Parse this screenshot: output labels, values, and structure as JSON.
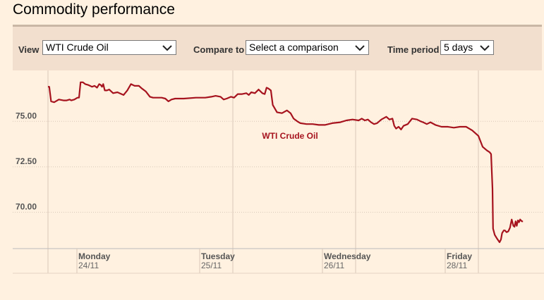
{
  "title": "Commodity performance",
  "controls": {
    "view_label": "View",
    "view_value": "WTI Crude Oil",
    "compare_label": "Compare to",
    "compare_value": "Select a comparison",
    "period_label": "Time period",
    "period_value": "5 days"
  },
  "colors": {
    "series": "#a6131e",
    "background": "#fff1e0",
    "toolbar": "#f2dfce"
  },
  "chart_data": {
    "type": "line",
    "ylim": [
      68.0,
      77.8
    ],
    "y_ticks": [
      75.0,
      72.5,
      70.0
    ],
    "y_tick_labels": [
      "75.00",
      "72.50",
      "70.00"
    ],
    "x_sessions": [
      {
        "day": "Monday",
        "date": "24/11"
      },
      {
        "day": "Tuesday",
        "date": "25/11"
      },
      {
        "day": "Wednesday",
        "date": "26/11"
      },
      {
        "day": "Friday",
        "date": "28/11"
      }
    ],
    "grid": "dotted",
    "series": [
      {
        "name": "WTI Crude Oil",
        "points": [
          [
            0.0,
            76.9
          ],
          [
            0.04,
            76.9
          ],
          [
            0.1,
            76.1
          ],
          [
            0.2,
            76.05
          ],
          [
            0.35,
            76.2
          ],
          [
            0.5,
            76.15
          ],
          [
            0.6,
            76.15
          ],
          [
            0.7,
            76.2
          ],
          [
            0.75,
            76.15
          ],
          [
            0.85,
            76.2
          ],
          [
            0.95,
            76.3
          ],
          [
            1.0,
            76.3
          ],
          [
            1.05,
            77.15
          ],
          [
            1.12,
            77.15
          ],
          [
            1.2,
            77.05
          ],
          [
            1.3,
            77.0
          ],
          [
            1.42,
            76.9
          ],
          [
            1.5,
            76.95
          ],
          [
            1.58,
            76.85
          ],
          [
            1.65,
            77.05
          ],
          [
            1.7,
            77.0
          ],
          [
            1.74,
            76.9
          ],
          [
            1.78,
            77.05
          ],
          [
            1.83,
            76.7
          ],
          [
            1.9,
            76.7
          ],
          [
            1.97,
            76.75
          ],
          [
            2.05,
            76.55
          ],
          [
            2.12,
            76.6
          ],
          [
            2.22,
            76.45
          ],
          [
            2.28,
            76.7
          ],
          [
            2.34,
            77.05
          ],
          [
            2.4,
            76.95
          ],
          [
            2.47,
            76.95
          ],
          [
            2.52,
            76.8
          ],
          [
            2.58,
            76.65
          ],
          [
            2.65,
            76.35
          ],
          [
            2.7,
            76.3
          ],
          [
            2.78,
            76.3
          ],
          [
            2.84,
            76.3
          ],
          [
            2.9,
            76.25
          ],
          [
            2.95,
            76.1
          ],
          [
            3.0,
            76.2
          ],
          [
            3.06,
            76.25
          ],
          [
            3.2,
            76.25
          ],
          [
            3.4,
            76.3
          ],
          [
            3.55,
            76.3
          ],
          [
            3.65,
            76.35
          ],
          [
            3.72,
            76.4
          ],
          [
            3.8,
            76.35
          ],
          [
            3.85,
            76.2
          ],
          [
            3.9,
            76.25
          ],
          [
            3.97,
            76.35
          ],
          [
            4.02,
            76.3
          ],
          [
            4.08,
            76.5
          ],
          [
            4.15,
            76.5
          ],
          [
            4.22,
            76.55
          ],
          [
            4.26,
            76.45
          ],
          [
            4.3,
            76.6
          ],
          [
            4.36,
            76.55
          ],
          [
            4.42,
            76.75
          ],
          [
            4.48,
            76.55
          ],
          [
            4.52,
            76.5
          ],
          [
            4.55,
            76.85
          ],
          [
            4.58,
            76.8
          ],
          [
            4.62,
            76.7
          ],
          [
            4.65,
            75.9
          ],
          [
            4.72,
            75.5
          ],
          [
            4.8,
            75.45
          ],
          [
            4.88,
            75.6
          ],
          [
            4.94,
            75.45
          ],
          [
            4.99,
            75.15
          ],
          [
            5.05,
            75.0
          ],
          [
            5.1,
            74.9
          ],
          [
            5.2,
            74.85
          ],
          [
            5.3,
            74.85
          ],
          [
            5.4,
            74.8
          ],
          [
            5.5,
            74.8
          ],
          [
            5.62,
            74.9
          ],
          [
            5.75,
            74.95
          ],
          [
            5.85,
            75.05
          ],
          [
            5.95,
            75.1
          ],
          [
            6.05,
            75.05
          ],
          [
            6.1,
            75.15
          ],
          [
            6.15,
            75.05
          ],
          [
            6.2,
            75.1
          ],
          [
            6.25,
            74.95
          ],
          [
            6.3,
            74.85
          ],
          [
            6.35,
            74.9
          ],
          [
            6.42,
            75.1
          ],
          [
            6.5,
            75.25
          ],
          [
            6.55,
            75.1
          ],
          [
            6.6,
            75.15
          ],
          [
            6.63,
            74.75
          ],
          [
            6.66,
            74.6
          ],
          [
            6.7,
            74.7
          ],
          [
            6.74,
            74.55
          ],
          [
            6.78,
            74.75
          ],
          [
            6.85,
            74.85
          ],
          [
            6.92,
            75.15
          ],
          [
            7.0,
            75.1
          ],
          [
            7.06,
            75.0
          ],
          [
            7.1,
            74.95
          ],
          [
            7.16,
            74.85
          ],
          [
            7.22,
            74.95
          ],
          [
            7.3,
            74.8
          ],
          [
            7.4,
            74.7
          ],
          [
            7.5,
            74.7
          ],
          [
            7.6,
            74.65
          ],
          [
            7.7,
            74.7
          ],
          [
            7.8,
            74.7
          ],
          [
            7.85,
            74.6
          ],
          [
            7.9,
            74.5
          ],
          [
            8.0,
            74.2
          ],
          [
            8.15,
            73.6
          ],
          [
            8.3,
            73.4
          ],
          [
            8.4,
            73.3
          ],
          [
            8.45,
            73.2
          ],
          [
            8.5,
            71.3
          ],
          [
            8.52,
            69.1
          ],
          [
            8.58,
            68.75
          ],
          [
            8.66,
            68.55
          ],
          [
            8.75,
            68.35
          ],
          [
            8.8,
            68.5
          ],
          [
            8.84,
            68.85
          ],
          [
            8.9,
            69.0
          ],
          [
            8.94,
            69.0
          ],
          [
            9.0,
            68.9
          ],
          [
            9.06,
            68.95
          ],
          [
            9.12,
            69.15
          ],
          [
            9.18,
            69.6
          ],
          [
            9.24,
            69.25
          ],
          [
            9.28,
            69.2
          ],
          [
            9.32,
            69.5
          ],
          [
            9.36,
            69.25
          ],
          [
            9.4,
            69.55
          ],
          [
            9.44,
            69.45
          ],
          [
            9.48,
            69.6
          ],
          [
            9.54,
            69.5
          ],
          [
            9.58,
            69.5
          ]
        ]
      }
    ],
    "series_label": "WTI Crude Oil"
  }
}
